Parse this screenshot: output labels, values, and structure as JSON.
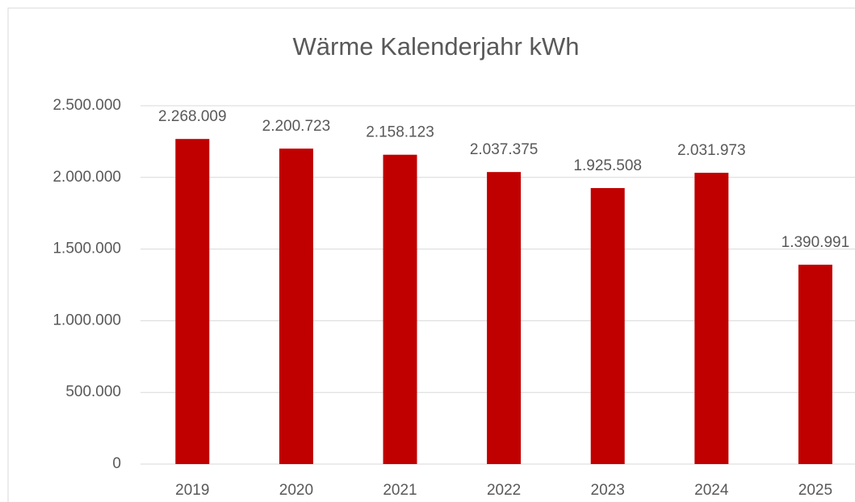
{
  "chart_data": {
    "type": "bar",
    "title": "Wärme Kalenderjahr kWh",
    "categories": [
      "2019",
      "2020",
      "2021",
      "2022",
      "2023",
      "2024",
      "2025"
    ],
    "values": [
      2268009,
      2200723,
      2158123,
      2037375,
      1925508,
      2031973,
      1390991
    ],
    "value_labels": [
      "2.268.009",
      "2.200.723",
      "2.158.123",
      "2.037.375",
      "1.925.508",
      "2.031.973",
      "1.390.991"
    ],
    "color": "#c00000",
    "ylim": [
      0,
      2500000
    ],
    "yticks": [
      0,
      {
        "value": 500000,
        "label": "500.000"
      },
      {
        "value": 1000000,
        "label": "1.000.000"
      },
      {
        "value": 1500000,
        "label": "1.500.000"
      },
      {
        "value": 2000000,
        "label": "2.000.000"
      },
      {
        "value": 2500000,
        "label": "2.500.000"
      }
    ],
    "grid": true
  }
}
